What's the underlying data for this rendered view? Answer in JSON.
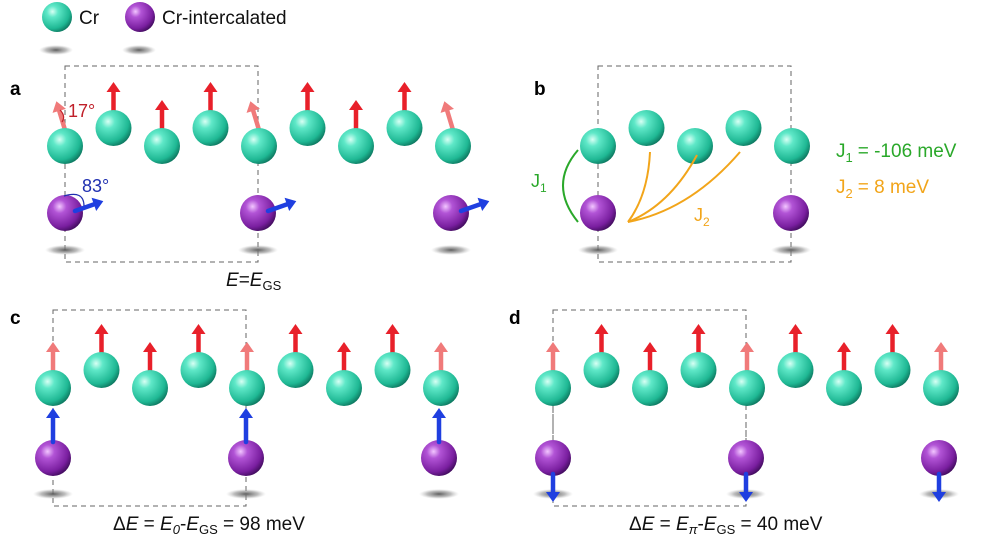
{
  "legend": {
    "cr": "Cr",
    "cr_intercalated": "Cr-intercalated"
  },
  "panels": {
    "a": {
      "label": "a",
      "angle_surface": "17°",
      "angle_intercalated": "83°",
      "caption_E": "E",
      "caption_eq": "=",
      "caption_E2": "E",
      "caption_sub": "GS"
    },
    "b": {
      "label": "b",
      "j1_letter": "J",
      "j1_sub": "1",
      "j2_letter": "J",
      "j2_sub": "2",
      "j1_value": "= -106 meV",
      "j2_value": "= 8 meV"
    },
    "c": {
      "label": "c",
      "cap_delta": "Δ",
      "cap_E": "E",
      "cap_eq": " = ",
      "cap_E0": "E",
      "cap_E0_sub": "0",
      "cap_minus": "-",
      "cap_EGS": "E",
      "cap_EGS_sub": "GS",
      "cap_value": " = 98 meV"
    },
    "d": {
      "label": "d",
      "cap_delta": "Δ",
      "cap_E": "E",
      "cap_eq": " = ",
      "cap_Epi": "E",
      "cap_Epi_sub": "π",
      "cap_minus": "-",
      "cap_EGS": "E",
      "cap_EGS_sub": "GS",
      "cap_value": " = 40 meV"
    }
  },
  "colors": {
    "cr_atom": "#2fd6b0",
    "intercalated_atom": "#8a2bb0",
    "spin_up": "#e8202a",
    "spin_tilted": "#f07a7a",
    "spin_intercalated": "#1f3fe0",
    "angle_red": "#c0202a",
    "angle_blue": "#1f2fb0",
    "j1_color": "#2aa82a",
    "j2_color": "#f2a51a"
  }
}
